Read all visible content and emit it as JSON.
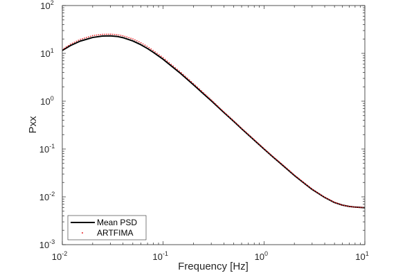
{
  "chart_data": {
    "type": "line",
    "title": "",
    "xlabel": "Frequency [Hz]",
    "ylabel": "Pxx",
    "xscale": "log",
    "yscale": "log",
    "xlim": [
      0.01,
      10
    ],
    "ylim": [
      0.001,
      100
    ],
    "x_ticks": [
      {
        "base": "10",
        "exp": "-2"
      },
      {
        "base": "10",
        "exp": "-1"
      },
      {
        "base": "10",
        "exp": "0"
      },
      {
        "base": "10",
        "exp": "1"
      }
    ],
    "y_ticks": [
      {
        "base": "10",
        "exp": "-3"
      },
      {
        "base": "10",
        "exp": "-2"
      },
      {
        "base": "10",
        "exp": "-1"
      },
      {
        "base": "10",
        "exp": "0"
      },
      {
        "base": "10",
        "exp": "1"
      },
      {
        "base": "10",
        "exp": "2"
      }
    ],
    "grid": false,
    "legend_position": "bottom-left",
    "series": [
      {
        "name": "Mean PSD",
        "style": "solid",
        "color": "#000000",
        "x": [
          0.01,
          0.012,
          0.015,
          0.02,
          0.025,
          0.03,
          0.035,
          0.04,
          0.05,
          0.06,
          0.07,
          0.08,
          0.1,
          0.12,
          0.15,
          0.2,
          0.25,
          0.3,
          0.4,
          0.5,
          0.6,
          0.8,
          1.0,
          1.2,
          1.5,
          2.0,
          2.5,
          3.0,
          4.0,
          5.0,
          6.0,
          7.0,
          8.0,
          9.0,
          10.0
        ],
        "y": [
          11.5,
          14.5,
          18.0,
          21.5,
          23.0,
          23.2,
          22.6,
          21.3,
          18.2,
          15.2,
          12.6,
          10.5,
          7.5,
          5.5,
          3.75,
          2.2,
          1.44,
          1.02,
          0.58,
          0.38,
          0.265,
          0.153,
          0.1,
          0.071,
          0.0475,
          0.028,
          0.0193,
          0.0143,
          0.0097,
          0.0076,
          0.0067,
          0.0063,
          0.0061,
          0.006,
          0.0059
        ]
      },
      {
        "name": "ARTFIMA",
        "style": "dotted",
        "color": "#e8262a",
        "x": [
          0.01,
          0.012,
          0.015,
          0.02,
          0.025,
          0.03,
          0.035,
          0.04,
          0.05,
          0.06,
          0.07,
          0.08,
          0.1,
          0.12,
          0.15,
          0.2,
          0.25,
          0.3,
          0.4,
          0.5,
          0.6,
          0.8,
          1.0,
          1.2,
          1.5,
          2.0,
          2.5,
          3.0,
          4.0,
          5.0,
          6.0,
          7.0,
          8.0,
          9.0,
          10.0
        ],
        "y": [
          12.0,
          15.5,
          19.5,
          23.5,
          25.0,
          25.2,
          24.6,
          23.3,
          20.0,
          16.7,
          13.8,
          11.4,
          8.1,
          5.9,
          4.0,
          2.33,
          1.52,
          1.07,
          0.6,
          0.39,
          0.272,
          0.157,
          0.102,
          0.0725,
          0.0485,
          0.0286,
          0.0196,
          0.0145,
          0.0098,
          0.0077,
          0.0067,
          0.0063,
          0.0061,
          0.006,
          0.006
        ]
      }
    ]
  },
  "colors": {
    "axis": "#262626",
    "mean_psd": "#000000",
    "artfima": "#e8262a"
  }
}
